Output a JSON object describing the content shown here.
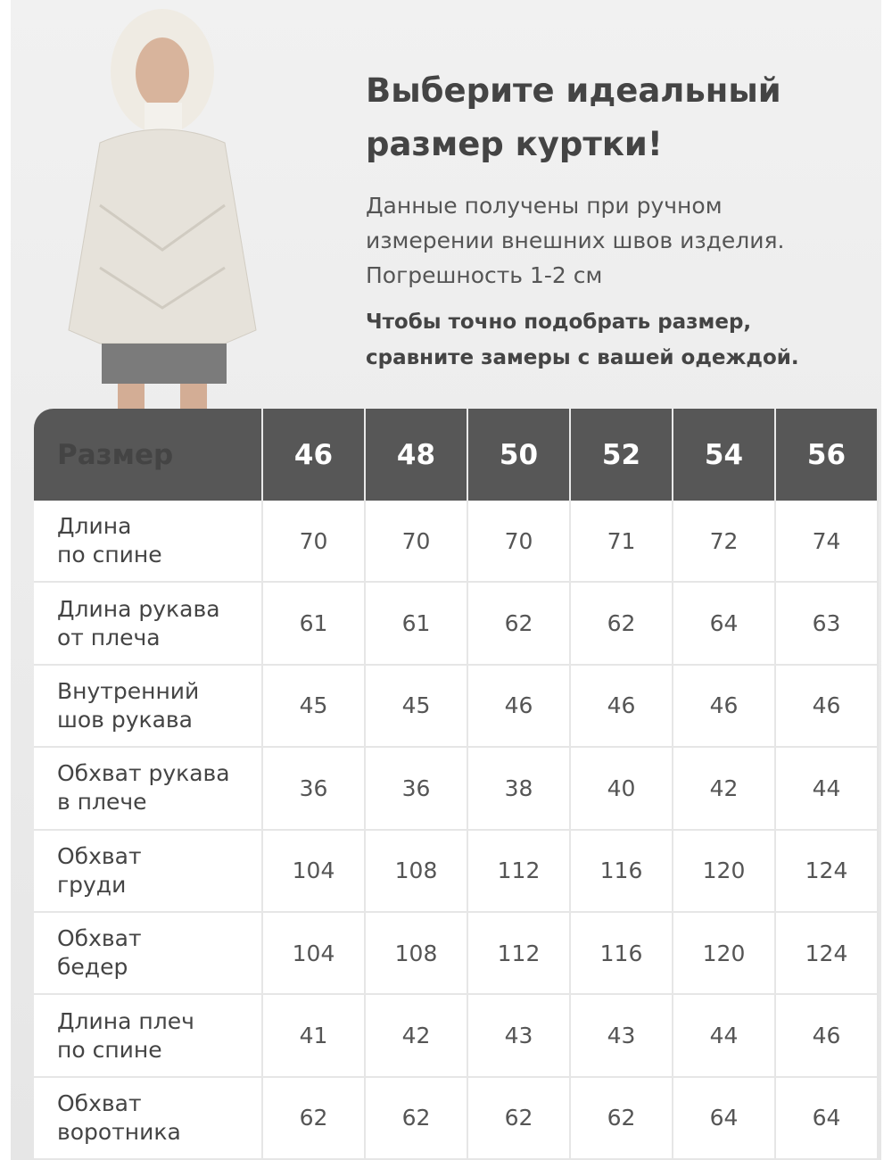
{
  "header": {
    "title": [
      "Выберите идеальный",
      "размер куртки!"
    ],
    "description": [
      "Данные получены при ручном",
      "измерении внешних швов изделия.",
      "Погрешность 1-2 см"
    ],
    "note": [
      "Чтобы точно подобрать размер,",
      "сравните замеры с вашей одеждой."
    ]
  },
  "table": {
    "columns": [
      "Размер",
      46,
      48,
      50,
      52,
      54,
      56
    ],
    "rows": [
      {
        "label": "Длина\nпо спине",
        "values": [
          70,
          70,
          70,
          71,
          72,
          74
        ]
      },
      {
        "label": "Длина рукава\nот плеча",
        "values": [
          61,
          61,
          62,
          62,
          64,
          63
        ]
      },
      {
        "label": "Внутренний\nшов рукава",
        "values": [
          45,
          45,
          46,
          46,
          46,
          46
        ]
      },
      {
        "label": "Обхват рукава\nв плече",
        "values": [
          36,
          36,
          38,
          40,
          42,
          44
        ]
      },
      {
        "label": "Обхват\nгруди",
        "values": [
          104,
          108,
          112,
          116,
          120,
          124
        ]
      },
      {
        "label": "Обхват\nбедер",
        "values": [
          104,
          108,
          112,
          116,
          120,
          124
        ]
      },
      {
        "label": "Длина плеч\nпо спине",
        "values": [
          41,
          42,
          43,
          43,
          44,
          46
        ]
      },
      {
        "label": "Обхват\nворотника",
        "values": [
          62,
          62,
          62,
          62,
          64,
          64
        ]
      }
    ]
  }
}
